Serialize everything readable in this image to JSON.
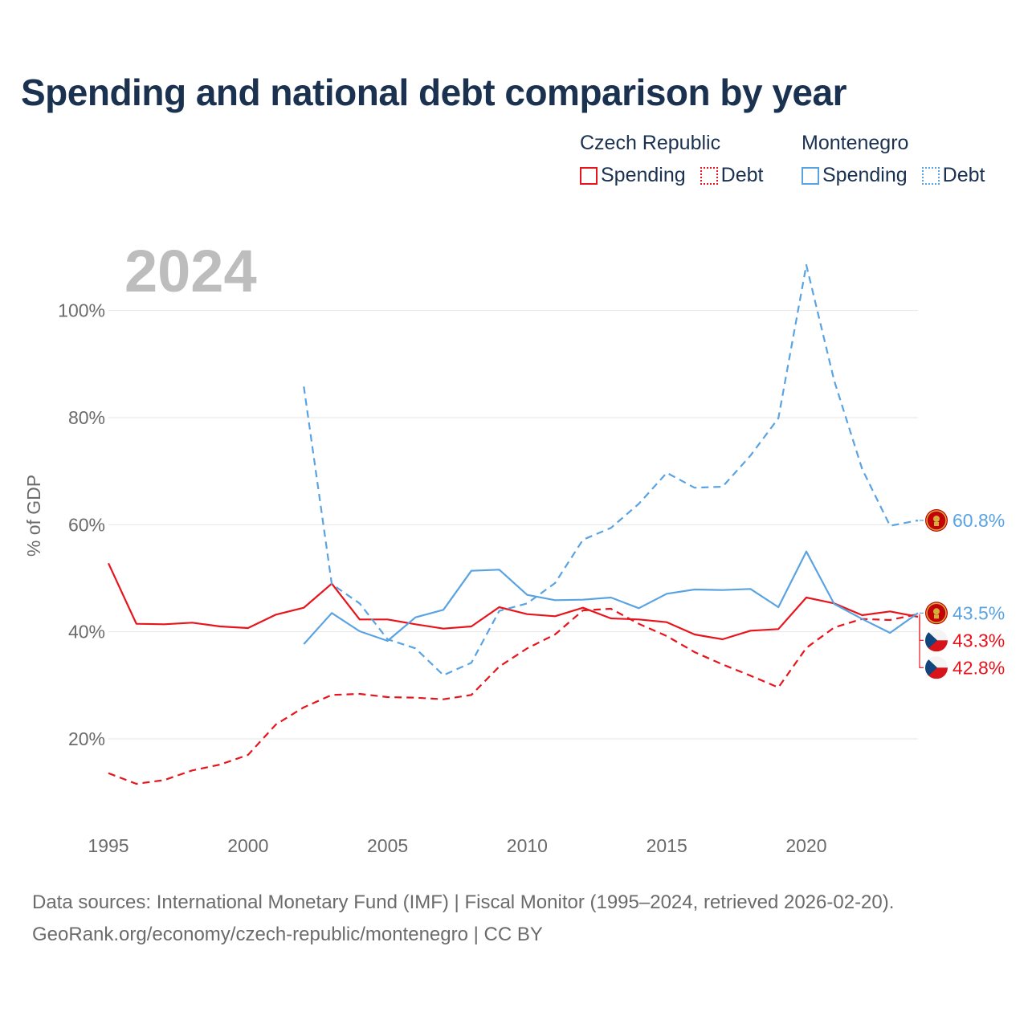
{
  "title": "Spending and national debt comparison by year",
  "legend": {
    "czech": {
      "name": "Czech Republic",
      "spending": "Spending",
      "debt": "Debt"
    },
    "montenegro": {
      "name": "Montenegro",
      "spending": "Spending",
      "debt": "Debt"
    }
  },
  "colors": {
    "czech": "#e8141c",
    "montenegro": "#5aa3e3",
    "grid": "#e6e6e6",
    "axis_text": "#6b6b6b",
    "year_label": "#bdbdbd",
    "title": "#1b3150"
  },
  "footer": {
    "line1": "Data sources: International Monetary Fund (IMF) | Fiscal Monitor (1995–2024, retrieved 2026-02-20).",
    "line2": "GeoRank.org/economy/czech-republic/montenegro | CC BY"
  },
  "chart_data": {
    "type": "line",
    "title": "Spending and national debt comparison by year",
    "current_year_label": "2024",
    "ylabel": "% of GDP",
    "xlabel": "",
    "xlim": [
      1995,
      2024
    ],
    "ylim": [
      5,
      113
    ],
    "x_ticks": [
      1995,
      2000,
      2005,
      2010,
      2015,
      2020
    ],
    "y_ticks": [
      {
        "value": 20,
        "label": "20%"
      },
      {
        "value": 40,
        "label": "40%"
      },
      {
        "value": 60,
        "label": "60%"
      },
      {
        "value": 80,
        "label": "80%"
      },
      {
        "value": 100,
        "label": "100%"
      }
    ],
    "grid": true,
    "series": [
      {
        "id": "cz-spending",
        "country": "Czech Republic",
        "name": "Spending",
        "color": "#e8141c",
        "dashed": false,
        "flag": "czech",
        "end_label": "42.8%",
        "x": [
          1995,
          1996,
          1997,
          1998,
          1999,
          2000,
          2001,
          2002,
          2003,
          2004,
          2005,
          2006,
          2007,
          2008,
          2009,
          2010,
          2011,
          2012,
          2013,
          2014,
          2015,
          2016,
          2017,
          2018,
          2019,
          2020,
          2021,
          2022,
          2023,
          2024
        ],
        "values": [
          52.8,
          41.5,
          41.4,
          41.7,
          41.0,
          40.7,
          43.2,
          44.5,
          49.0,
          42.3,
          42.3,
          41.4,
          40.6,
          41.0,
          44.6,
          43.3,
          42.9,
          44.5,
          42.5,
          42.3,
          41.8,
          39.5,
          38.6,
          40.2,
          40.5,
          46.4,
          45.3,
          43.1,
          43.8,
          42.8
        ]
      },
      {
        "id": "cz-debt",
        "country": "Czech Republic",
        "name": "Debt",
        "color": "#e8141c",
        "dashed": true,
        "flag": "czech",
        "end_label": "43.3%",
        "x": [
          1995,
          1996,
          1997,
          1998,
          1999,
          2000,
          2001,
          2002,
          2003,
          2004,
          2005,
          2006,
          2007,
          2008,
          2009,
          2010,
          2011,
          2012,
          2013,
          2014,
          2015,
          2016,
          2017,
          2018,
          2019,
          2020,
          2021,
          2022,
          2023,
          2024
        ],
        "values": [
          13.6,
          11.6,
          12.3,
          14.1,
          15.2,
          17.0,
          22.7,
          25.9,
          28.2,
          28.4,
          27.8,
          27.7,
          27.4,
          28.2,
          33.5,
          36.9,
          39.5,
          44.0,
          44.3,
          41.5,
          39.2,
          36.2,
          33.9,
          31.8,
          29.6,
          37.0,
          40.8,
          42.4,
          42.2,
          43.3
        ]
      },
      {
        "id": "me-spending",
        "country": "Montenegro",
        "name": "Spending",
        "color": "#5aa3e3",
        "dashed": false,
        "flag": "montenegro",
        "end_label": "43.5%",
        "x": [
          2002,
          2003,
          2004,
          2005,
          2006,
          2007,
          2008,
          2009,
          2010,
          2011,
          2012,
          2013,
          2014,
          2015,
          2016,
          2017,
          2018,
          2019,
          2020,
          2021,
          2022,
          2023,
          2024
        ],
        "values": [
          37.7,
          43.5,
          40.1,
          38.3,
          42.7,
          44.1,
          51.4,
          51.6,
          46.9,
          45.9,
          46.0,
          46.4,
          44.4,
          47.1,
          47.9,
          47.8,
          48.0,
          44.6,
          55.0,
          45.2,
          42.4,
          39.8,
          43.5
        ]
      },
      {
        "id": "me-debt",
        "country": "Montenegro",
        "name": "Debt",
        "color": "#5aa3e3",
        "dashed": true,
        "flag": "montenegro",
        "end_label": "60.8%",
        "x": [
          2002,
          2003,
          2004,
          2005,
          2006,
          2007,
          2008,
          2009,
          2010,
          2011,
          2012,
          2013,
          2014,
          2015,
          2016,
          2017,
          2018,
          2019,
          2020,
          2021,
          2022,
          2023,
          2024
        ],
        "values": [
          85.8,
          48.9,
          45.3,
          38.6,
          36.9,
          31.9,
          34.2,
          43.9,
          45.3,
          49.1,
          57.2,
          59.4,
          63.9,
          69.7,
          66.9,
          67.1,
          72.9,
          79.9,
          108.5,
          86.9,
          70.4,
          59.8,
          60.8
        ]
      }
    ]
  }
}
